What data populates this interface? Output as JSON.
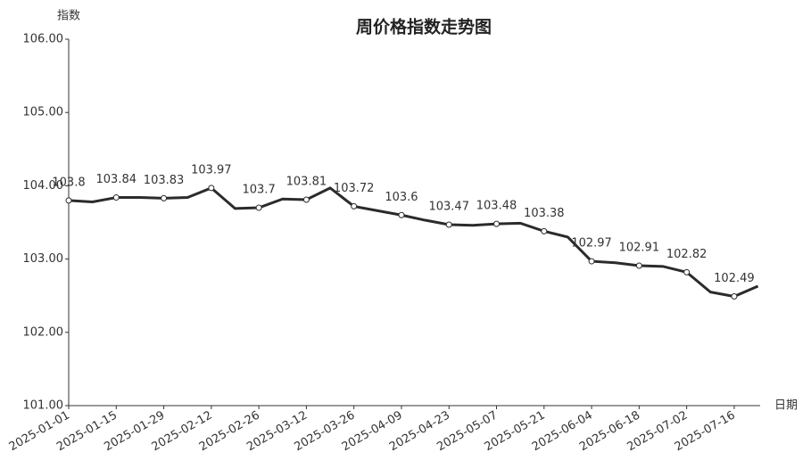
{
  "chart_data": {
    "type": "line",
    "title": "周价格指数走势图",
    "y_label": "指数",
    "x_label": "日期",
    "categories": [
      "2025-01-01",
      null,
      "2025-01-15",
      null,
      "2025-01-29",
      null,
      "2025-02-12",
      null,
      "2025-02-26",
      null,
      "2025-03-12",
      null,
      "2025-03-26",
      null,
      "2025-04-09",
      null,
      "2025-04-23",
      null,
      "2025-05-07",
      null,
      "2025-05-21",
      null,
      "2025-06-04",
      null,
      "2025-06-18",
      null,
      "2025-07-02",
      null,
      "2025-07-16",
      null
    ],
    "series": [
      {
        "name": "指数",
        "color": "#2b2b2b",
        "values": [
          103.8,
          103.78,
          103.84,
          103.84,
          103.83,
          103.84,
          103.97,
          103.69,
          103.7,
          103.82,
          103.81,
          103.97,
          103.72,
          103.66,
          103.6,
          103.53,
          103.47,
          103.46,
          103.48,
          103.49,
          103.38,
          103.3,
          102.97,
          102.95,
          102.91,
          102.9,
          102.82,
          102.55,
          102.49,
          102.63
        ],
        "value_labels": [
          "103.8",
          null,
          "103.84",
          null,
          "103.83",
          null,
          "103.97",
          null,
          "103.7",
          null,
          "103.81",
          null,
          "103.72",
          null,
          "103.6",
          null,
          "103.47",
          null,
          "103.48",
          null,
          "103.38",
          null,
          "102.97",
          null,
          "102.91",
          null,
          "102.82",
          null,
          "102.49",
          null
        ]
      }
    ],
    "ylim": [
      101,
      106
    ],
    "yticks": [
      {
        "value": 101,
        "label": "101.00"
      },
      {
        "value": 102,
        "label": "102.00"
      },
      {
        "value": 103,
        "label": "103.00"
      },
      {
        "value": 104,
        "label": "104.00"
      },
      {
        "value": 105,
        "label": "105.00"
      },
      {
        "value": 106,
        "label": "106.00"
      }
    ],
    "grid": false
  }
}
